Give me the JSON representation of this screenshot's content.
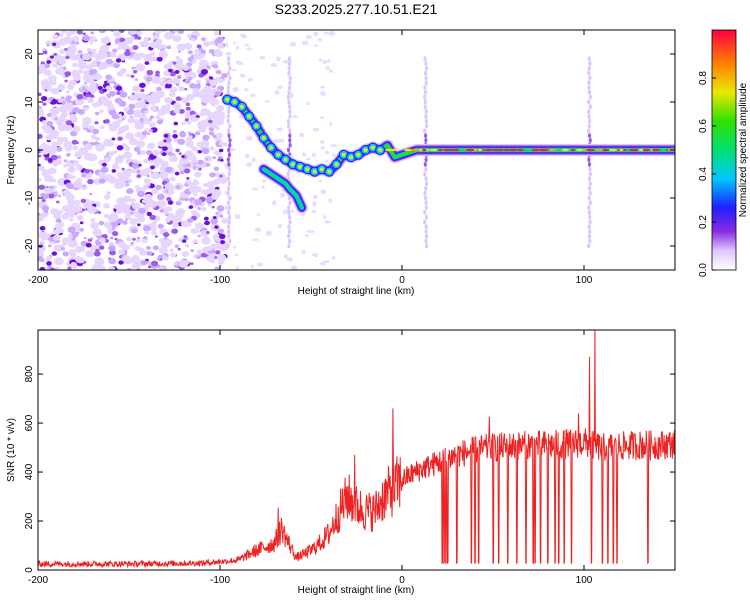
{
  "title": "S233.2025.277.10.51.E21",
  "chart_data": [
    {
      "type": "heatmap",
      "name": "spectrogram",
      "xlabel": "Height of straight line (km)",
      "ylabel": "Frequency (Hz)",
      "xlim": [
        -200,
        150
      ],
      "ylim": [
        -25,
        25
      ],
      "xticks": [
        -200,
        -100,
        0,
        100
      ],
      "yticks": [
        -20,
        -10,
        0,
        10,
        20
      ],
      "noise_region_x": [
        -200,
        -97
      ],
      "ridge": [
        {
          "x": -96,
          "f": 10.5
        },
        {
          "x": -92,
          "f": 10
        },
        {
          "x": -88,
          "f": 9
        },
        {
          "x": -84,
          "f": 7
        },
        {
          "x": -80,
          "f": 5
        },
        {
          "x": -76,
          "f": 2.5
        },
        {
          "x": -72,
          "f": 0.5
        },
        {
          "x": -68,
          "f": -1
        },
        {
          "x": -64,
          "f": -2
        },
        {
          "x": -60,
          "f": -3
        },
        {
          "x": -56,
          "f": -3.5
        },
        {
          "x": -52,
          "f": -4
        },
        {
          "x": -48,
          "f": -4.5
        },
        {
          "x": -44,
          "f": -4
        },
        {
          "x": -40,
          "f": -4.5
        },
        {
          "x": -36,
          "f": -3
        },
        {
          "x": -32,
          "f": -1
        },
        {
          "x": -28,
          "f": -1.5
        },
        {
          "x": -24,
          "f": -1
        },
        {
          "x": -20,
          "f": 0
        },
        {
          "x": -16,
          "f": 0.5
        },
        {
          "x": -12,
          "f": 0
        },
        {
          "x": -8,
          "f": 1
        },
        {
          "x": -4,
          "f": -1.5
        },
        {
          "x": 0,
          "f": -1
        },
        {
          "x": 4,
          "f": -0.5
        },
        {
          "x": 8,
          "f": 0
        },
        {
          "x": 12,
          "f": 0
        },
        {
          "x": 20,
          "f": 0
        },
        {
          "x": 30,
          "f": 0
        },
        {
          "x": 40,
          "f": 0
        },
        {
          "x": 50,
          "f": 0
        },
        {
          "x": 60,
          "f": 0
        },
        {
          "x": 70,
          "f": 0
        },
        {
          "x": 80,
          "f": 0
        },
        {
          "x": 90,
          "f": 0
        },
        {
          "x": 100,
          "f": 0
        },
        {
          "x": 110,
          "f": 0
        },
        {
          "x": 120,
          "f": 0
        },
        {
          "x": 130,
          "f": 0
        },
        {
          "x": 140,
          "f": 0
        },
        {
          "x": 150,
          "f": 0
        }
      ],
      "branch": [
        {
          "x": -76,
          "f": -4
        },
        {
          "x": -72,
          "f": -5
        },
        {
          "x": -68,
          "f": -6
        },
        {
          "x": -64,
          "f": -7
        },
        {
          "x": -62,
          "f": -8
        },
        {
          "x": -58,
          "f": -9.5
        },
        {
          "x": -55,
          "f": -12
        }
      ],
      "vertical_streaks_x": [
        -95,
        -62,
        13,
        103
      ],
      "colorbar": {
        "label": "Normalized spectral amplitude",
        "range": [
          0,
          1
        ],
        "ticks": [
          "0.0",
          "0.2",
          "0.4",
          "0.6",
          "0.8"
        ],
        "tick_values": [
          0.0,
          0.2,
          0.4,
          0.6,
          0.8
        ]
      }
    },
    {
      "type": "line",
      "name": "snr",
      "xlabel": "Height of straight line (km)",
      "ylabel": "SNR (10 * v/v)",
      "xlim": [
        -200,
        150
      ],
      "ylim": [
        0,
        980
      ],
      "xticks": [
        -200,
        -100,
        0,
        100
      ],
      "yticks": [
        0,
        200,
        400,
        600,
        800
      ],
      "color": "#ee2222",
      "baseline": [
        {
          "x": -200,
          "y": 25
        },
        {
          "x": -150,
          "y": 25
        },
        {
          "x": -110,
          "y": 28
        },
        {
          "x": -90,
          "y": 40
        },
        {
          "x": -80,
          "y": 80
        },
        {
          "x": -70,
          "y": 110
        },
        {
          "x": -66,
          "y": 170
        },
        {
          "x": -63,
          "y": 120
        },
        {
          "x": -58,
          "y": 50
        },
        {
          "x": -50,
          "y": 80
        },
        {
          "x": -45,
          "y": 110
        },
        {
          "x": -40,
          "y": 150
        },
        {
          "x": -35,
          "y": 230
        },
        {
          "x": -30,
          "y": 300
        },
        {
          "x": -25,
          "y": 260
        },
        {
          "x": -20,
          "y": 240
        },
        {
          "x": -15,
          "y": 240
        },
        {
          "x": -10,
          "y": 300
        },
        {
          "x": -5,
          "y": 330
        },
        {
          "x": 0,
          "y": 370
        },
        {
          "x": 5,
          "y": 390
        },
        {
          "x": 10,
          "y": 410
        },
        {
          "x": 20,
          "y": 440
        },
        {
          "x": 30,
          "y": 470
        },
        {
          "x": 40,
          "y": 490
        },
        {
          "x": 50,
          "y": 500
        },
        {
          "x": 60,
          "y": 505
        },
        {
          "x": 70,
          "y": 510
        },
        {
          "x": 80,
          "y": 510
        },
        {
          "x": 90,
          "y": 515
        },
        {
          "x": 100,
          "y": 520
        },
        {
          "x": 110,
          "y": 500
        },
        {
          "x": 120,
          "y": 505
        },
        {
          "x": 130,
          "y": 510
        },
        {
          "x": 140,
          "y": 510
        },
        {
          "x": 150,
          "y": 515
        }
      ],
      "spikes": [
        {
          "x": -68,
          "y": 255
        },
        {
          "x": -26,
          "y": 470
        },
        {
          "x": -5,
          "y": 660
        },
        {
          "x": 48,
          "y": 625
        },
        {
          "x": 97,
          "y": 640
        },
        {
          "x": 103,
          "y": 870
        },
        {
          "x": 106,
          "y": 985
        }
      ],
      "dropouts": [
        22,
        23,
        24,
        25,
        30,
        38,
        40,
        42,
        50,
        53,
        58,
        63,
        68,
        72,
        73,
        76,
        80,
        84,
        86,
        89,
        93,
        104,
        110,
        113,
        116,
        118,
        135
      ]
    }
  ]
}
